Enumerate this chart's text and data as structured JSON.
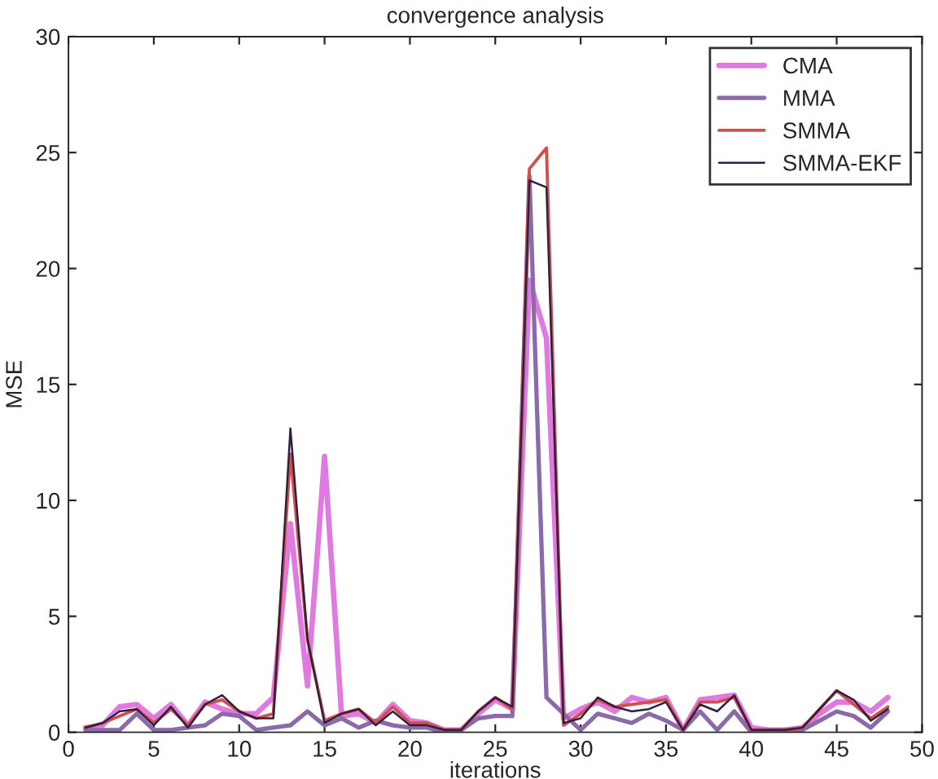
{
  "chart_data": {
    "type": "line",
    "title": "convergence analysis",
    "xlabel": "iterations",
    "ylabel": "MSE",
    "x": [
      1,
      2,
      3,
      4,
      5,
      6,
      7,
      8,
      9,
      10,
      11,
      12,
      13,
      14,
      15,
      16,
      17,
      18,
      19,
      20,
      21,
      22,
      23,
      24,
      25,
      26,
      27,
      28,
      29,
      30,
      31,
      32,
      33,
      34,
      35,
      36,
      37,
      38,
      39,
      40,
      41,
      42,
      43,
      44,
      45,
      46,
      47,
      48
    ],
    "series": [
      {
        "name": "CMA",
        "color": "#e07ae0",
        "values": [
          0.2,
          0.3,
          1.1,
          1.2,
          0.6,
          1.2,
          0.3,
          1.3,
          1.0,
          0.8,
          0.8,
          1.5,
          9.0,
          2.0,
          11.9,
          0.7,
          0.8,
          0.4,
          1.2,
          0.5,
          0.4,
          0.1,
          0.1,
          0.8,
          1.4,
          1.0,
          19.5,
          17.0,
          0.6,
          1.0,
          1.3,
          0.9,
          1.5,
          1.3,
          1.5,
          0.1,
          1.4,
          1.5,
          1.6,
          0.2,
          0.1,
          0.1,
          0.2,
          0.8,
          1.3,
          1.3,
          0.9,
          1.5
        ]
      },
      {
        "name": "MMA",
        "color": "#8a6aa8",
        "values": [
          0.1,
          0.1,
          0.1,
          0.8,
          0.1,
          0.1,
          0.2,
          0.3,
          0.8,
          0.7,
          0.1,
          0.2,
          0.3,
          0.9,
          0.3,
          0.6,
          0.2,
          0.5,
          0.3,
          0.2,
          0.2,
          0.0,
          0.1,
          0.6,
          0.7,
          0.7,
          24.0,
          1.5,
          0.8,
          0.1,
          0.8,
          0.6,
          0.4,
          0.8,
          0.5,
          0.1,
          0.9,
          0.1,
          0.9,
          0.0,
          0.0,
          0.1,
          0.1,
          0.5,
          0.9,
          0.7,
          0.2,
          0.9
        ]
      },
      {
        "name": "SMMA",
        "color": "#d05050",
        "values": [
          0.2,
          0.4,
          0.7,
          1.0,
          0.4,
          1.0,
          0.3,
          1.2,
          1.4,
          0.9,
          0.6,
          0.8,
          12.0,
          4.0,
          0.5,
          0.8,
          1.0,
          0.4,
          1.1,
          0.4,
          0.4,
          0.1,
          0.1,
          0.9,
          1.5,
          1.0,
          24.3,
          25.2,
          0.3,
          0.8,
          1.4,
          1.1,
          1.2,
          1.3,
          1.4,
          0.1,
          1.3,
          1.3,
          1.5,
          0.1,
          0.1,
          0.1,
          0.2,
          1.0,
          1.8,
          1.2,
          0.6,
          1.1
        ]
      },
      {
        "name": "SMMA-EKF",
        "color": "#302040",
        "values": [
          0.2,
          0.4,
          0.9,
          1.0,
          0.3,
          1.1,
          0.2,
          1.2,
          1.6,
          0.9,
          0.6,
          0.6,
          13.1,
          4.0,
          0.4,
          0.8,
          1.0,
          0.3,
          0.9,
          0.3,
          0.3,
          0.1,
          0.1,
          0.9,
          1.5,
          1.1,
          23.8,
          23.5,
          0.4,
          0.6,
          1.5,
          1.1,
          0.9,
          1.0,
          1.3,
          0.1,
          1.2,
          0.9,
          1.6,
          0.1,
          0.1,
          0.1,
          0.2,
          1.0,
          1.8,
          1.4,
          0.5,
          1.0
        ]
      }
    ],
    "xlim": [
      0,
      50
    ],
    "xticks": [
      0,
      5,
      10,
      15,
      20,
      25,
      30,
      35,
      40,
      45,
      50
    ],
    "ylim": [
      0,
      30
    ],
    "yticks": [
      0,
      5,
      10,
      15,
      20,
      25,
      30
    ],
    "grid": false,
    "legend": "top right",
    "marker": "none",
    "line_style": "solid"
  }
}
